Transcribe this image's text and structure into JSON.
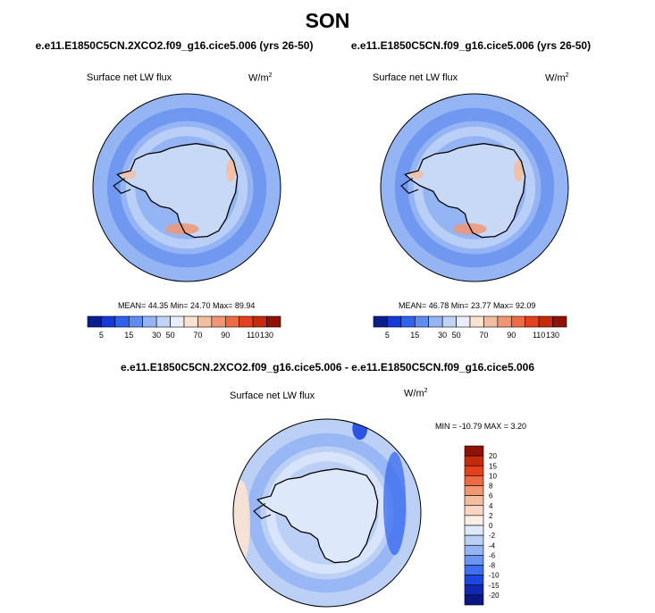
{
  "page": {
    "title": "SON",
    "diff_title": "e.e11.E1850C5CN.2XCO2.f09_g16.cice5.006 - e.e11.E1850C5CN.f09_g16.cice5.006"
  },
  "panels": [
    {
      "case_title": "e.e11.E1850C5CN.2XCO2.f09_g16.cice5.006 (yrs 26-50)",
      "variable": "Surface net LW flux",
      "units": "W/m",
      "units_exp": "2",
      "stats": "MEAN=  44.35  Min=  24.70  Max=  89.94"
    },
    {
      "case_title": "e.e11.E1850C5CN.f09_g16.cice5.006 (yrs 26-50)",
      "variable": "Surface net LW flux",
      "units": "W/m",
      "units_exp": "2",
      "stats": "MEAN=  46.78  Min=  23.77  Max=  92.09"
    }
  ],
  "diff_panel": {
    "variable": "Surface net LW flux",
    "units": "W/m",
    "units_exp": "2",
    "stats": "MIN = -10.79 MAX =   3.20"
  },
  "chart_data": [
    {
      "type": "heatmap",
      "title": "e.e11.E1850C5CN.2XCO2.f09_g16.cice5.006 (yrs 26-50)",
      "variable": "Surface net LW flux",
      "units": "W/m2",
      "projection": "south polar stereographic",
      "mean": 44.35,
      "min": 24.7,
      "max": 89.94,
      "colorbar": {
        "orientation": "horizontal",
        "levels": [
          5,
          15,
          30,
          50,
          70,
          90,
          110,
          130
        ],
        "labels": [
          "5",
          "15",
          "30",
          "50",
          "70",
          "90",
          "110",
          "130"
        ],
        "colors": [
          "#0b1e8c",
          "#1638d8",
          "#2f63ef",
          "#5f8cf0",
          "#94b4f4",
          "#c1d3f7",
          "#e8eefb",
          "#fbe2d2",
          "#f4bda0",
          "#f09673",
          "#ee6a43",
          "#e5401c",
          "#c42b0e",
          "#8f1206"
        ]
      }
    },
    {
      "type": "heatmap",
      "title": "e.e11.E1850C5CN.f09_g16.cice5.006 (yrs 26-50)",
      "variable": "Surface net LW flux",
      "units": "W/m2",
      "projection": "south polar stereographic",
      "mean": 46.78,
      "min": 23.77,
      "max": 92.09,
      "colorbar": {
        "orientation": "horizontal",
        "levels": [
          5,
          15,
          30,
          50,
          70,
          90,
          110,
          130
        ],
        "labels": [
          "5",
          "15",
          "30",
          "50",
          "70",
          "90",
          "110",
          "130"
        ],
        "colors": [
          "#0b1e8c",
          "#1638d8",
          "#2f63ef",
          "#5f8cf0",
          "#94b4f4",
          "#c1d3f7",
          "#e8eefb",
          "#fbe2d2",
          "#f4bda0",
          "#f09673",
          "#ee6a43",
          "#e5401c",
          "#c42b0e",
          "#8f1206"
        ]
      }
    },
    {
      "type": "heatmap",
      "title": "e.e11.E1850C5CN.2XCO2.f09_g16.cice5.006 - e.e11.E1850C5CN.f09_g16.cice5.006",
      "variable": "Surface net LW flux",
      "units": "W/m2",
      "projection": "south polar stereographic",
      "min": -10.79,
      "max": 3.2,
      "colorbar": {
        "orientation": "vertical",
        "labels": [
          "20",
          "15",
          "10",
          "8",
          "6",
          "4",
          "2",
          "0",
          "-2",
          "-4",
          "-6",
          "-8",
          "-10",
          "-15",
          "-20"
        ],
        "colors": [
          "#8f1206",
          "#c42b0e",
          "#e5401c",
          "#ee6a43",
          "#f09673",
          "#f4bda0",
          "#f8d6c2",
          "#fbeee6",
          "#dde8fb",
          "#bcd0f6",
          "#94b4f4",
          "#6b95f1",
          "#3e6fef",
          "#1d45e0",
          "#1128b0",
          "#0b1684"
        ]
      }
    }
  ]
}
